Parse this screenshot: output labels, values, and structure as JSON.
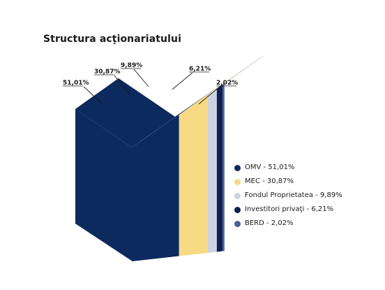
{
  "chart_data": {
    "type": "bar",
    "title": "Structura acţionariatului",
    "series": [
      {
        "name": "OMV",
        "value": 51.01,
        "label": "51,01%",
        "legend": "OMV - 51,01%",
        "color": "#0d2a5e"
      },
      {
        "name": "MEC",
        "value": 30.87,
        "label": "30,87%",
        "legend": "MEC - 30,87%",
        "color": "#f8da85"
      },
      {
        "name": "Fondul Proprietatea",
        "value": 9.89,
        "label": "9,89%",
        "legend": "Fondul Proprietatea - 9,89%",
        "color": "#cdd2e0"
      },
      {
        "name": "Investitori privaţi",
        "value": 6.21,
        "label": "6,21%",
        "legend": "Investitori privaţi - 6,21%",
        "color": "#0b2150"
      },
      {
        "name": "BERD",
        "value": 2.02,
        "label": "2,02%",
        "legend": "BERD - 2,02%",
        "color": "#4a5f90"
      }
    ],
    "legend_position": "right"
  }
}
